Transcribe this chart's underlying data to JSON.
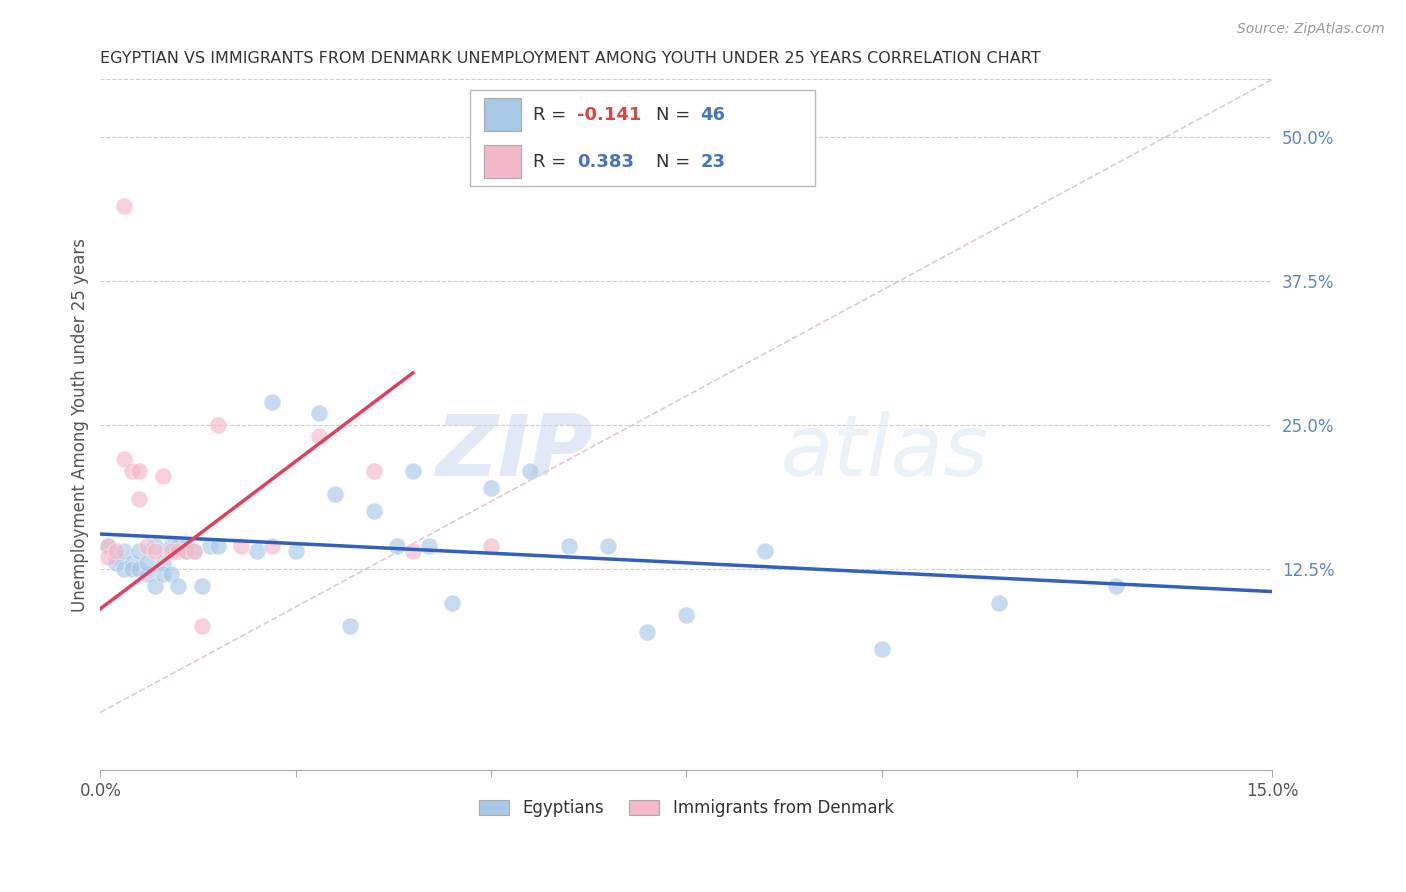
{
  "title": "EGYPTIAN VS IMMIGRANTS FROM DENMARK UNEMPLOYMENT AMONG YOUTH UNDER 25 YEARS CORRELATION CHART",
  "source": "Source: ZipAtlas.com",
  "ylabel": "Unemployment Among Youth under 25 years",
  "xlim": [
    0.0,
    0.15
  ],
  "ylim": [
    -0.05,
    0.55
  ],
  "yticks_right": [
    0.125,
    0.25,
    0.375,
    0.5
  ],
  "ytick_labels_right": [
    "12.5%",
    "25.0%",
    "37.5%",
    "50.0%"
  ],
  "background_color": "#ffffff",
  "grid_color": "#cccccc",
  "watermark_zip": "ZIP",
  "watermark_atlas": "atlas",
  "legend_label1": "Egyptians",
  "legend_label2": "Immigrants from Denmark",
  "blue_color": "#a8c8e8",
  "pink_color": "#f4b8c8",
  "blue_line_color": "#3060c0",
  "pink_line_color": "#e04060",
  "diag_color": "#ccaaaa",
  "scatter_alpha": 0.65,
  "scatter_size": 150,
  "egyptians_x": [
    0.001,
    0.002,
    0.002,
    0.003,
    0.003,
    0.004,
    0.004,
    0.005,
    0.005,
    0.006,
    0.006,
    0.007,
    0.007,
    0.008,
    0.008,
    0.009,
    0.009,
    0.01,
    0.01,
    0.011,
    0.011,
    0.012,
    0.013,
    0.014,
    0.015,
    0.02,
    0.022,
    0.025,
    0.028,
    0.03,
    0.032,
    0.035,
    0.038,
    0.04,
    0.042,
    0.045,
    0.05,
    0.055,
    0.06,
    0.065,
    0.07,
    0.075,
    0.085,
    0.1,
    0.115,
    0.13
  ],
  "egyptians_y": [
    0.145,
    0.135,
    0.13,
    0.14,
    0.125,
    0.13,
    0.125,
    0.14,
    0.125,
    0.12,
    0.13,
    0.11,
    0.145,
    0.13,
    0.12,
    0.145,
    0.12,
    0.11,
    0.145,
    0.14,
    0.145,
    0.14,
    0.11,
    0.145,
    0.145,
    0.14,
    0.27,
    0.14,
    0.26,
    0.19,
    0.075,
    0.175,
    0.145,
    0.21,
    0.145,
    0.095,
    0.195,
    0.21,
    0.145,
    0.145,
    0.07,
    0.085,
    0.14,
    0.055,
    0.095,
    0.11
  ],
  "denmark_x": [
    0.001,
    0.001,
    0.002,
    0.003,
    0.003,
    0.004,
    0.005,
    0.005,
    0.006,
    0.007,
    0.008,
    0.009,
    0.01,
    0.011,
    0.012,
    0.013,
    0.015,
    0.018,
    0.022,
    0.028,
    0.035,
    0.04,
    0.05
  ],
  "denmark_y": [
    0.145,
    0.135,
    0.14,
    0.44,
    0.22,
    0.21,
    0.21,
    0.185,
    0.145,
    0.14,
    0.205,
    0.14,
    0.14,
    0.14,
    0.14,
    0.075,
    0.25,
    0.145,
    0.145,
    0.24,
    0.21,
    0.14,
    0.145
  ],
  "blue_trend": [
    0.0,
    0.155,
    0.15,
    0.105
  ],
  "pink_trend": [
    0.0,
    0.09,
    0.04,
    0.295
  ]
}
